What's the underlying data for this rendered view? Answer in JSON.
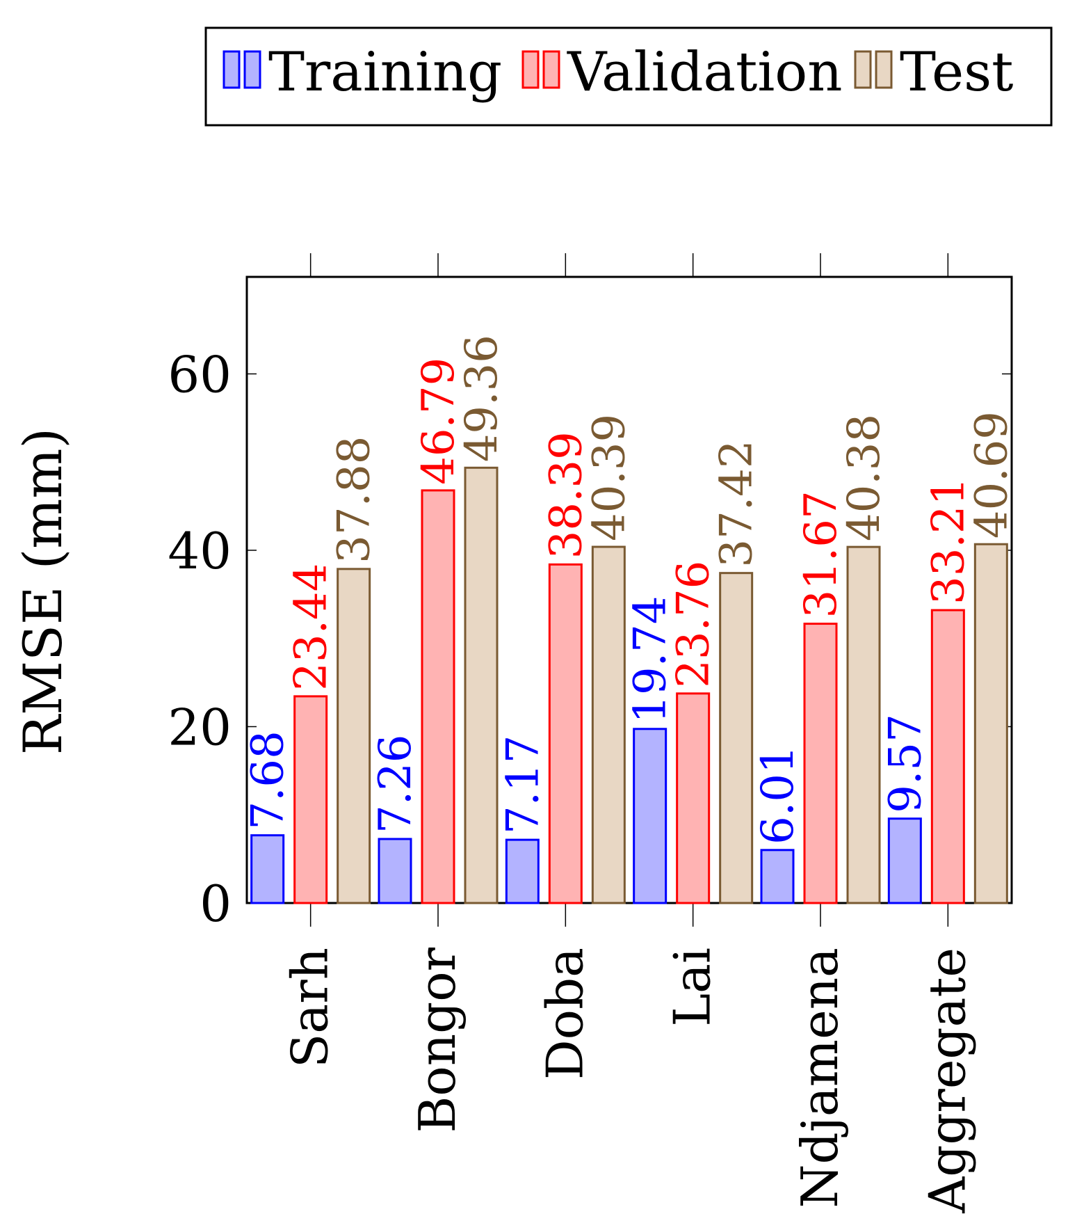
{
  "chart_data": {
    "type": "bar",
    "title": "",
    "xlabel": "",
    "ylabel": "RMSE (mm)",
    "ylim": [
      0,
      71
    ],
    "yticks": [
      0,
      20,
      40,
      60
    ],
    "grid": false,
    "legend_position": "top-right, outside plot",
    "categories": [
      "Sarh",
      "Bongor",
      "Doba",
      "Lai",
      "Ndjamena",
      "Aggregate"
    ],
    "series": [
      {
        "name": "Training",
        "stroke": "#0000ff",
        "fill": "#b3b3ff",
        "label_color": "#0000ff",
        "values": [
          7.68,
          7.26,
          7.17,
          19.74,
          6.01,
          9.57
        ],
        "labels": [
          "7.68",
          "7.26",
          "7.17",
          "19.74",
          "6.01",
          "9.57"
        ]
      },
      {
        "name": "Validation",
        "stroke": "#ff0000",
        "fill": "#ffb3b3",
        "label_color": "#ff0000",
        "values": [
          23.44,
          46.79,
          38.39,
          23.76,
          31.67,
          33.21
        ],
        "labels": [
          "23.44",
          "46.79",
          "38.39",
          "23.76",
          "31.67",
          "33.21"
        ]
      },
      {
        "name": "Test",
        "stroke": "#7a5a32",
        "fill": "#e8d7c4",
        "label_color": "#7a5a32",
        "values": [
          37.88,
          49.36,
          40.39,
          37.42,
          40.38,
          40.69
        ],
        "labels": [
          "37.88",
          "49.36",
          "40.39",
          "37.42",
          "40.38",
          "40.69"
        ]
      }
    ]
  }
}
